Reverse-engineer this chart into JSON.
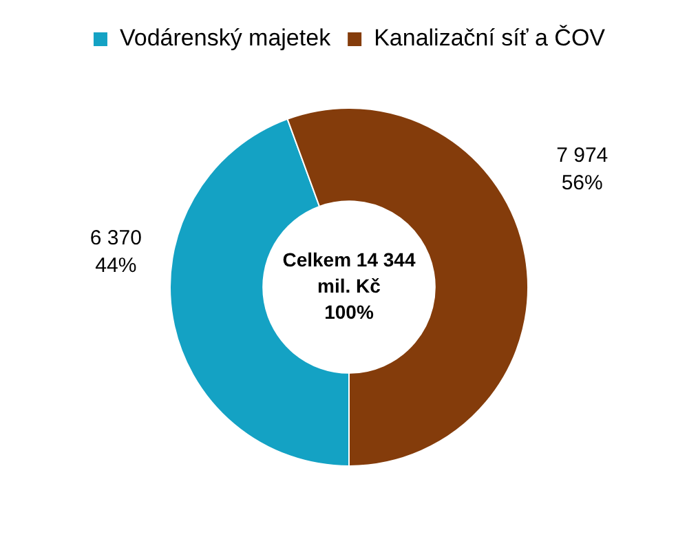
{
  "chart_data": {
    "type": "donut",
    "categories": [
      "Vodárenský majetek",
      "Kanalizační síť a ČOV"
    ],
    "values": [
      6370,
      7974
    ],
    "colors": [
      "#14a2c4",
      "#843c0b"
    ],
    "value_labels": [
      "6 370\n44%",
      "7 974\n56%"
    ],
    "annotations": [
      "Celkem 14 344\nmil. Kč\n100%"
    ],
    "legend": "top"
  }
}
